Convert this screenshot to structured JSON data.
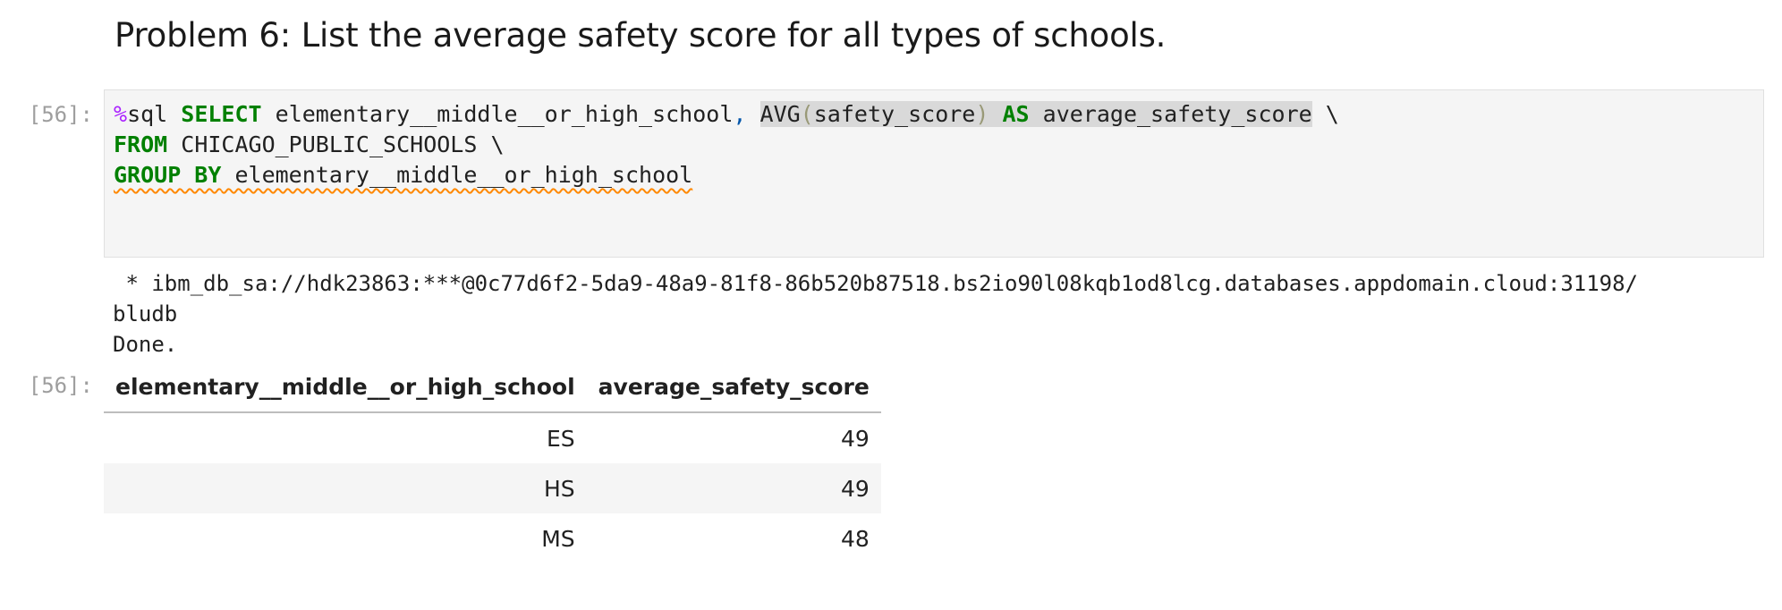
{
  "markdown": {
    "heading": "Problem 6: List the average safety score for all types of schools."
  },
  "code_cell": {
    "prompt": "[56]:",
    "line1": {
      "magic": "%",
      "cmd": "sql ",
      "kw_select": "SELECT",
      "col": " elementary__middle__or_high_school",
      "comma": ",",
      "space": " ",
      "func": "AVG",
      "open_paren": "(",
      "arg": "safety_score",
      "close_paren": ")",
      "kw_as": "AS",
      "alias": " average_safety_score",
      "continuation": " \\"
    },
    "line2": {
      "kw_from": "FROM",
      "table": " CHICAGO_PUBLIC_SCHOOLS \\"
    },
    "line3": {
      "kw_group_by": "GROUP BY",
      "col": " elementary__middle__or_high_school"
    }
  },
  "stdout": {
    "line1": " * ibm_db_sa://hdk23863:***@0c77d6f2-5da9-48a9-81f8-86b520b87518.bs2io90l08kqb1od8lcg.databases.appdomain.cloud:31198/",
    "line2": "bludb",
    "line3": "Done."
  },
  "output": {
    "prompt": "[56]:",
    "table": {
      "headers": [
        "elementary__middle__or_high_school",
        "average_safety_score"
      ],
      "rows": [
        [
          "ES",
          "49"
        ],
        [
          "HS",
          "49"
        ],
        [
          "MS",
          "48"
        ]
      ]
    }
  }
}
